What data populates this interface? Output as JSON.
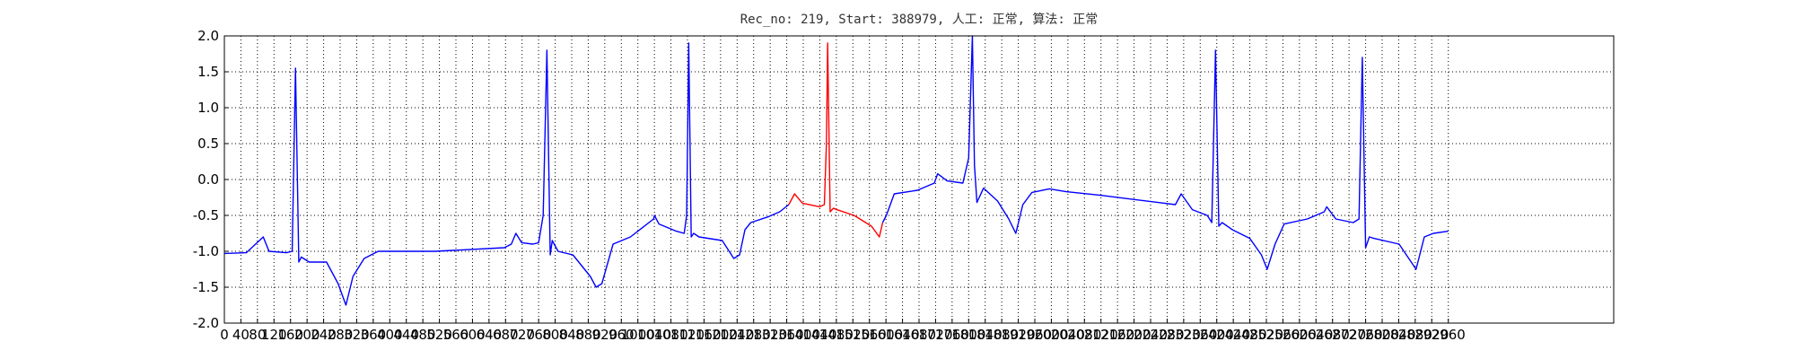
{
  "chart_data": {
    "type": "line",
    "title": "Rec_no: 219, Start: 388979, 人工: 正常, 算法: 正常",
    "grid": true,
    "xlim": [
      0,
      3360
    ],
    "ylim": [
      -2,
      2
    ],
    "yticks": [
      {
        "value": 2,
        "label": "2.0"
      },
      1.5,
      {
        "value": 1,
        "label": "1.0"
      },
      0.5,
      {
        "value": 0,
        "label": "0.0"
      },
      -0.5,
      {
        "value": -1,
        "label": "-1.0"
      },
      -1.5,
      {
        "value": -2,
        "label": "-2.0"
      }
    ],
    "xticks": [
      0,
      40,
      80,
      120,
      160,
      200,
      240,
      280,
      320,
      360,
      400,
      440,
      480,
      520,
      560,
      600,
      640,
      680,
      720,
      760,
      800,
      840,
      880,
      920,
      960,
      1000,
      1040,
      1080,
      1120,
      1160,
      1200,
      1240,
      1280,
      1320,
      1360,
      1400,
      1440,
      1480,
      1520,
      1560,
      1600,
      1640,
      1680,
      1720,
      1760,
      1800,
      1840,
      1880,
      1920,
      1960,
      2000,
      2040,
      2080,
      2120,
      2160,
      2200,
      2240,
      2280,
      2320,
      2360,
      2400,
      2440,
      2480,
      2520,
      2560,
      2600,
      2640,
      2680,
      2720,
      2760,
      2800,
      2840,
      2880,
      2920,
      2960
    ],
    "series": [
      {
        "color": "#0000ff",
        "x": [
          0,
          53,
          94,
          108,
          150,
          164,
          172,
          180,
          186,
          205,
          247,
          275,
          294,
          311,
          338,
          372,
          510,
          677,
          694,
          705,
          719,
          746,
          760,
          771,
          780,
          788,
          793,
          807,
          843,
          885,
          899,
          913,
          940,
          982,
          1038,
          1040,
          1051,
          1093,
          1112,
          1118,
          1123,
          1129,
          1135,
          1148,
          1204,
          1232,
          1246,
          1259,
          1273,
          1315,
          1343,
          1365
        ],
        "values": [
          -1.03,
          -1.02,
          -0.8,
          -1.0,
          -1.02,
          -1.0,
          1.55,
          -1.15,
          -1.08,
          -1.15,
          -1.15,
          -1.45,
          -1.75,
          -1.35,
          -1.1,
          -1.0,
          -1.0,
          -0.95,
          -0.9,
          -0.75,
          -0.88,
          -0.9,
          -0.88,
          -0.5,
          1.8,
          -1.05,
          -0.85,
          -1.0,
          -1.05,
          -1.35,
          -1.5,
          -1.45,
          -0.9,
          -0.8,
          -0.55,
          -0.5,
          -0.62,
          -0.72,
          -0.75,
          -0.5,
          1.9,
          -0.8,
          -0.75,
          -0.8,
          -0.85,
          -1.1,
          -1.05,
          -0.7,
          -0.6,
          -0.52,
          -0.45,
          -0.35
        ]
      },
      {
        "color": "#ff0000",
        "x": [
          1365,
          1379,
          1398,
          1440,
          1451,
          1456,
          1459,
          1465,
          1473,
          1481,
          1523,
          1565,
          1584,
          1592
        ],
        "values": [
          -0.35,
          -0.2,
          -0.33,
          -0.38,
          -0.35,
          0.5,
          1.9,
          -0.45,
          -0.4,
          -0.42,
          -0.5,
          -0.65,
          -0.8,
          -0.6
        ]
      },
      {
        "color": "#0000ff",
        "x": [
          1592,
          1601,
          1620,
          1676,
          1717,
          1725,
          1748,
          1786,
          1800,
          1809,
          1814,
          1820,
          1836,
          1870,
          1897,
          1914,
          1931,
          1953,
          1995,
          2036,
          2119,
          2203,
          2258,
          2300,
          2314,
          2341,
          2377,
          2388,
          2397,
          2405,
          2413,
          2438,
          2480,
          2508,
          2522,
          2541,
          2563,
          2619,
          2660,
          2666,
          2688,
          2730,
          2744,
          2752,
          2760,
          2769,
          2780,
          2841,
          2882,
          2902,
          2924,
          2960
        ],
        "values": [
          -0.6,
          -0.5,
          -0.2,
          -0.15,
          -0.05,
          0.08,
          -0.02,
          -0.05,
          0.3,
          2.0,
          0.2,
          -0.32,
          -0.12,
          -0.3,
          -0.55,
          -0.75,
          -0.35,
          -0.18,
          -0.13,
          -0.17,
          -0.22,
          -0.28,
          -0.32,
          -0.35,
          -0.2,
          -0.42,
          -0.5,
          -0.6,
          1.8,
          -0.65,
          -0.6,
          -0.7,
          -0.82,
          -1.05,
          -1.25,
          -0.9,
          -0.62,
          -0.55,
          -0.45,
          -0.38,
          -0.55,
          -0.6,
          -0.55,
          1.7,
          -0.95,
          -0.8,
          -0.82,
          -0.9,
          -1.25,
          -0.8,
          -0.75,
          -0.72
        ]
      }
    ]
  }
}
